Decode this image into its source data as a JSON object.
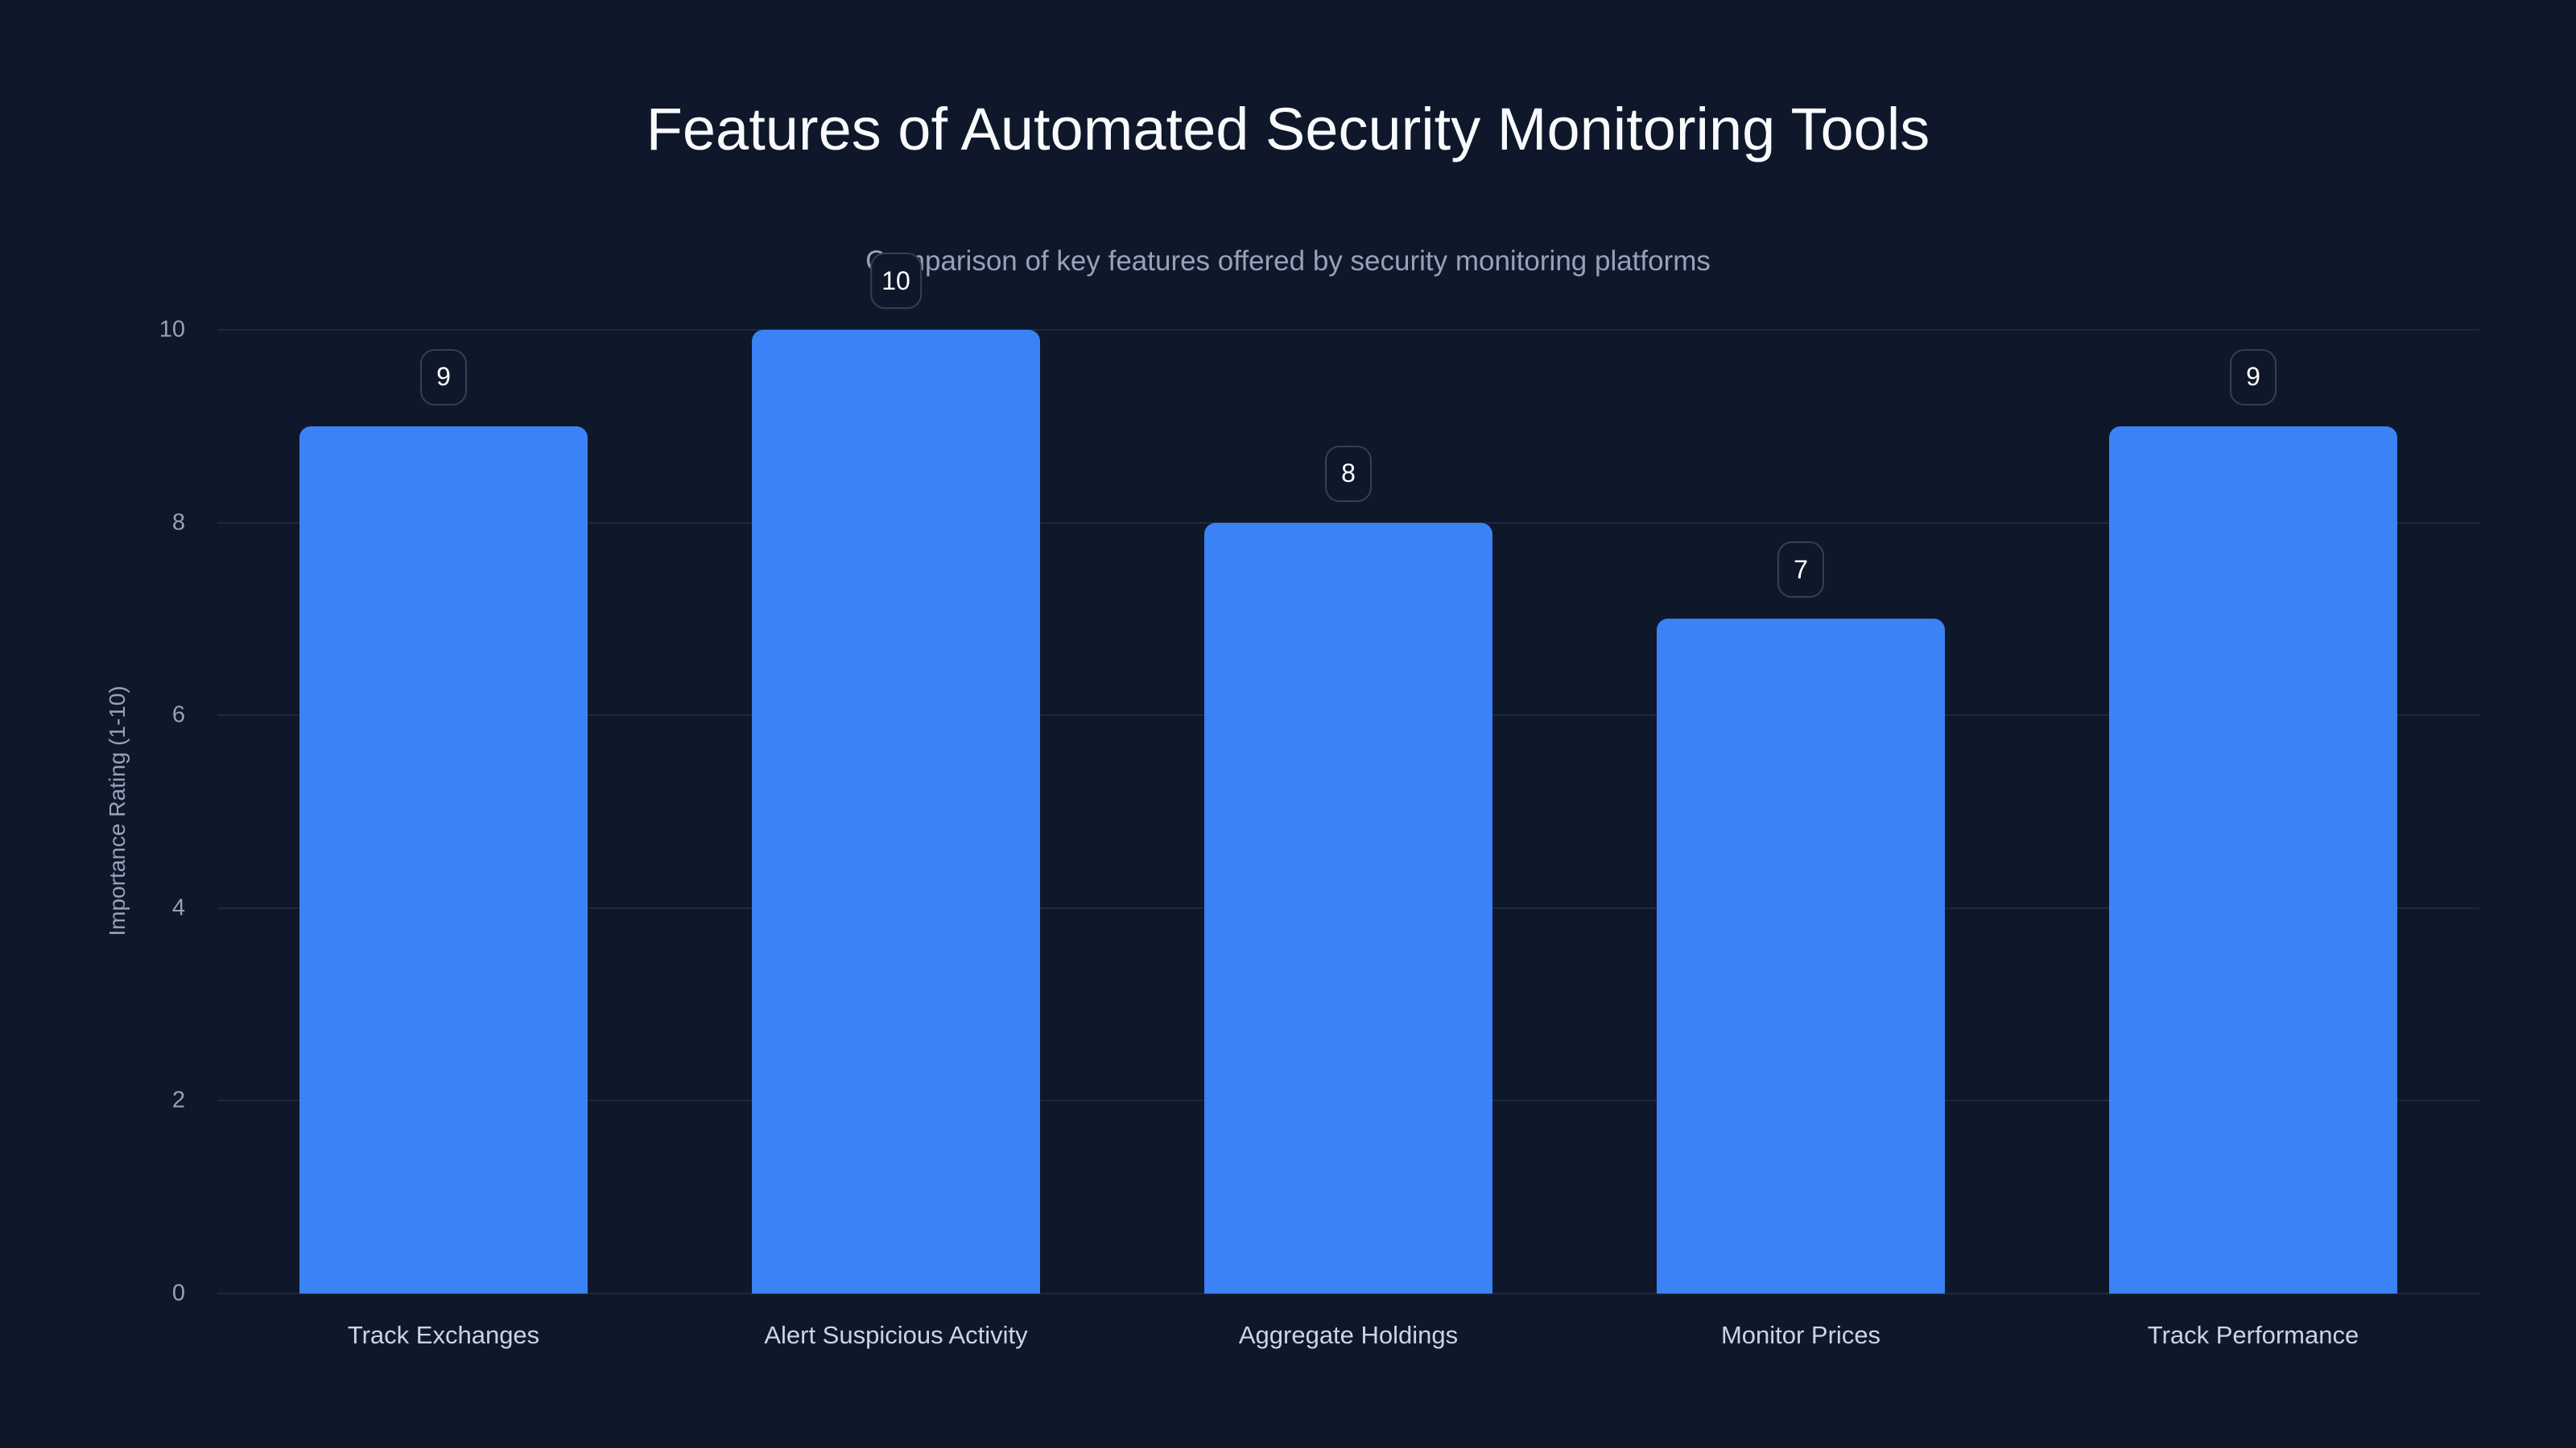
{
  "title": "Features of Automated Security Monitoring Tools",
  "subtitle": "Comparison of key features offered by security monitoring platforms",
  "colors": {
    "background": "#0f172a",
    "bar": "#3b82f6",
    "grid": "#1e293b",
    "text_muted": "#94a3b8"
  },
  "y_axis": {
    "label": "Importance Rating (1-10)",
    "ticks": [
      "0",
      "2",
      "4",
      "6",
      "8",
      "10"
    ]
  },
  "chart_data": {
    "type": "bar",
    "title": "Features of Automated Security Monitoring Tools",
    "subtitle": "Comparison of key features offered by security monitoring platforms",
    "categories": [
      "Track Exchanges",
      "Alert Suspicious Activity",
      "Aggregate Holdings",
      "Monitor Prices",
      "Track Performance"
    ],
    "values": [
      9,
      10,
      8,
      7,
      9
    ],
    "xlabel": "",
    "ylabel": "Importance Rating (1-10)",
    "ylim": [
      0,
      10
    ],
    "yticks": [
      0,
      2,
      4,
      6,
      8,
      10
    ],
    "grid": true,
    "legend": null,
    "data_labels": true
  }
}
